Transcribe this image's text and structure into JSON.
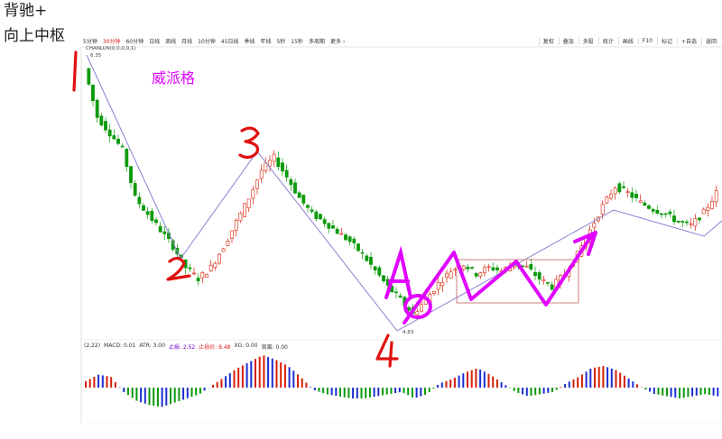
{
  "heading": {
    "line1": "背驰+",
    "line2": "向上中枢"
  },
  "toolbar": {
    "periods": [
      "5分钟",
      "30分钟",
      "60分钟",
      "日线",
      "周线",
      "月线",
      "10分钟",
      "45日线",
      "季线",
      "年线",
      "5秒",
      "15秒",
      "多周期",
      "更多 ›"
    ],
    "active_period": "30分钟",
    "right_items": [
      "复权",
      "叠加",
      "多股",
      "统计",
      "画线",
      "F10",
      "标记",
      "+自选",
      "返回"
    ]
  },
  "indicator_label": "CHANLUN(0,0,0,0,1)",
  "annotation": {
    "text": "威派格",
    "color": "#e000ff"
  },
  "price_labels": {
    "high": "6.35",
    "low": "4.83"
  },
  "stroke_labels": [
    "1",
    "2",
    "3",
    "4"
  ],
  "pivot_marker": "A",
  "macd_legend": [
    {
      "text": "(2,22)",
      "cls": "k"
    },
    {
      "text": "MACD: 0.01",
      "cls": "k"
    },
    {
      "text": "ATR: 3.00",
      "cls": "k"
    },
    {
      "text": "止损: 2.52",
      "cls": "v1"
    },
    {
      "text": "止损价: 8.48",
      "cls": "v2"
    },
    {
      "text": "XG: 0.00",
      "cls": "k"
    },
    {
      "text": "背离: 0.00",
      "cls": "k"
    }
  ],
  "colors": {
    "up": "#d81e06",
    "down": "#0a9a0a",
    "stroke": "#8a7fd0",
    "annotation": "#e000ff",
    "hand_red": "#e01010",
    "macd_up": "#d81e06",
    "macd_neg": "#0a9a0a",
    "macd_blue": "#1a2fcf"
  },
  "chart_data": {
    "type": "candlestick",
    "description_series": "Candles approximated from price path",
    "price_range": [
      4.83,
      6.35
    ],
    "strokes": [
      {
        "from": "1",
        "to": "2",
        "start_price": 6.35,
        "end_price": 5.05
      },
      {
        "from": "2",
        "to": "3",
        "start_price": 5.05,
        "end_price": 5.8
      },
      {
        "from": "3",
        "to": "4",
        "start_price": 5.8,
        "end_price": 4.83
      },
      {
        "from": "4",
        "to": "up",
        "start_price": 4.83,
        "end_price": 5.6
      }
    ],
    "close_path": [
      6.35,
      6.05,
      5.95,
      5.85,
      5.55,
      5.45,
      5.35,
      5.25,
      5.12,
      5.05,
      5.12,
      5.25,
      5.4,
      5.55,
      5.72,
      5.8,
      5.68,
      5.55,
      5.45,
      5.4,
      5.34,
      5.28,
      5.2,
      5.1,
      5.0,
      4.92,
      4.83,
      4.92,
      5.02,
      5.1,
      5.14,
      5.08,
      5.12,
      5.1,
      5.14,
      5.12,
      5.05,
      5.0,
      5.08,
      5.2,
      5.35,
      5.5,
      5.62,
      5.58,
      5.52,
      5.48,
      5.45,
      5.4,
      5.38,
      5.46,
      5.58
    ],
    "macd_hist": [
      0.03,
      0.06,
      0.05,
      -0.02,
      -0.06,
      -0.08,
      -0.09,
      -0.07,
      -0.05,
      -0.03,
      0.01,
      0.05,
      0.09,
      0.12,
      0.15,
      0.13,
      0.1,
      0.05,
      -0.01,
      -0.03,
      -0.04,
      -0.05,
      -0.05,
      -0.04,
      -0.03,
      -0.02,
      -0.05,
      -0.03,
      0.02,
      0.04,
      0.07,
      0.09,
      0.06,
      0.02,
      -0.02,
      -0.04,
      -0.03,
      -0.02,
      0.02,
      0.05,
      0.09,
      0.1,
      0.08,
      0.04,
      0.0,
      -0.03,
      -0.04,
      -0.05,
      -0.04,
      -0.03,
      -0.04
    ]
  }
}
